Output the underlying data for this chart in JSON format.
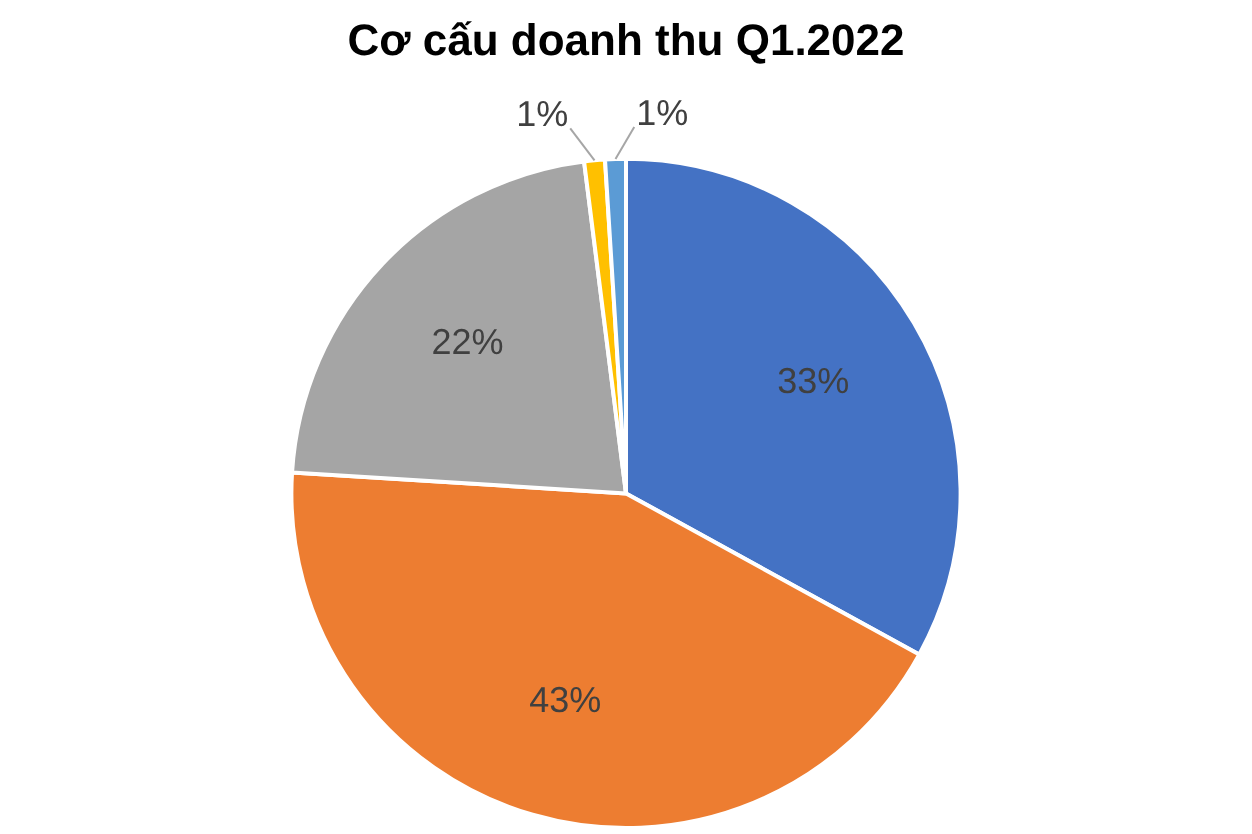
{
  "chart_data": {
    "type": "pie",
    "title": "Cơ cấu doanh thu Q1.2022",
    "categories": [
      null,
      null,
      null,
      null,
      null
    ],
    "values": [
      33,
      43,
      22,
      1,
      1
    ],
    "value_labels": [
      "33%",
      "43%",
      "22%",
      "1%",
      "1%"
    ],
    "colors": [
      "#4472c4",
      "#ed7d31",
      "#a5a5a5",
      "#ffc000",
      "#5b9bd5"
    ]
  }
}
